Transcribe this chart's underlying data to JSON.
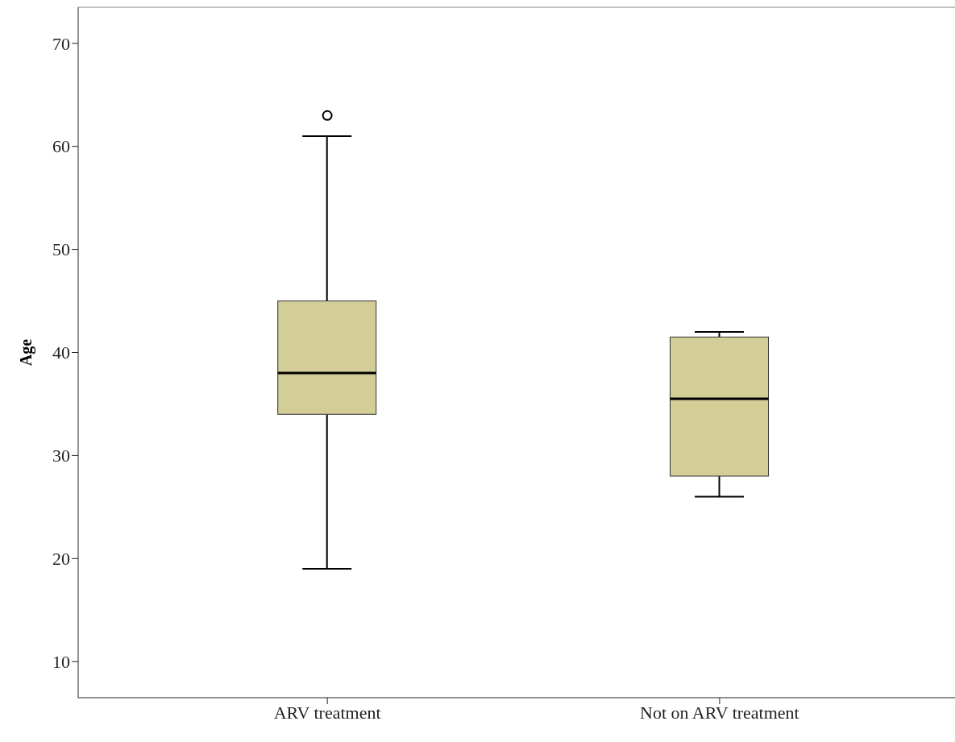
{
  "chart_data": {
    "type": "box",
    "ylabel": "Age",
    "categories": [
      "ARV treatment",
      "Not on ARV treatment"
    ],
    "color": "#d3cd98",
    "boxes": [
      {
        "low": 19,
        "q1": 34,
        "median": 38,
        "q3": 45,
        "high": 61,
        "outliers": [
          63
        ]
      },
      {
        "low": 26,
        "q1": 28,
        "median": 35.5,
        "q3": 41.5,
        "high": 42
      }
    ],
    "ylim": [
      6.5,
      73.5
    ],
    "yticks": [
      10,
      20,
      30,
      40,
      50,
      60,
      70
    ]
  }
}
